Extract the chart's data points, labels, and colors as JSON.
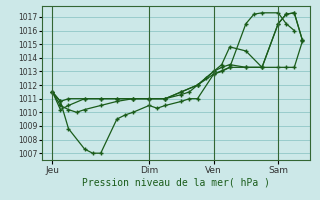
{
  "xlabel": "Pression niveau de la mer( hPa )",
  "bg_color": "#cce8e8",
  "grid_color": "#99cccc",
  "line_color": "#1a5c1a",
  "ylim": [
    1006.5,
    1017.8
  ],
  "yticks": [
    1007,
    1008,
    1009,
    1010,
    1011,
    1012,
    1013,
    1014,
    1015,
    1016,
    1017
  ],
  "xtick_labels": [
    "Jeu",
    "Dim",
    "Ven",
    "Sam"
  ],
  "xtick_pos": [
    0,
    36,
    60,
    84
  ],
  "xlim": [
    -4,
    96
  ],
  "vlines": [
    0,
    36,
    60,
    84
  ],
  "line1_x": [
    0,
    3,
    6,
    12,
    15,
    18,
    24,
    27,
    30,
    36,
    39,
    42,
    48,
    51,
    54,
    60,
    66,
    72,
    75,
    78,
    84,
    87,
    90
  ],
  "line1_y": [
    1011.5,
    1010.8,
    1008.8,
    1007.3,
    1007.0,
    1007.0,
    1009.5,
    1009.8,
    1010.0,
    1010.5,
    1010.3,
    1010.5,
    1010.8,
    1011.0,
    1011.0,
    1012.8,
    1013.3,
    1016.5,
    1017.2,
    1017.3,
    1017.3,
    1016.5,
    1016.0
  ],
  "line2_x": [
    0,
    3,
    6,
    9,
    12,
    18,
    24,
    30,
    36,
    42,
    48,
    51,
    54,
    57,
    60,
    63,
    66,
    72,
    78,
    84,
    87,
    90,
    93
  ],
  "line2_y": [
    1011.5,
    1010.5,
    1010.2,
    1010.0,
    1010.2,
    1010.5,
    1010.8,
    1011.0,
    1011.0,
    1011.0,
    1011.3,
    1011.5,
    1012.0,
    1012.5,
    1013.0,
    1013.3,
    1013.5,
    1013.3,
    1013.3,
    1013.3,
    1013.3,
    1013.3,
    1015.2
  ],
  "line3_x": [
    0,
    3,
    6,
    12,
    18,
    24,
    30,
    36,
    42,
    48,
    54,
    60,
    63,
    66,
    72,
    78,
    84,
    87,
    90,
    93
  ],
  "line3_y": [
    1011.5,
    1010.8,
    1011.0,
    1011.0,
    1011.0,
    1011.0,
    1011.0,
    1011.0,
    1011.0,
    1011.5,
    1012.0,
    1013.0,
    1013.5,
    1014.8,
    1014.5,
    1013.3,
    1016.5,
    1017.2,
    1017.3,
    1015.3
  ],
  "line4_x": [
    0,
    3,
    6,
    12,
    18,
    24,
    30,
    36,
    42,
    48,
    54,
    60,
    63,
    66,
    72,
    78,
    84,
    87,
    90,
    93
  ],
  "line4_y": [
    1011.5,
    1010.2,
    1010.5,
    1011.0,
    1011.0,
    1011.0,
    1011.0,
    1011.0,
    1011.0,
    1011.5,
    1012.0,
    1012.8,
    1013.0,
    1013.3,
    1013.3,
    1013.3,
    1016.5,
    1017.2,
    1017.3,
    1015.3
  ]
}
